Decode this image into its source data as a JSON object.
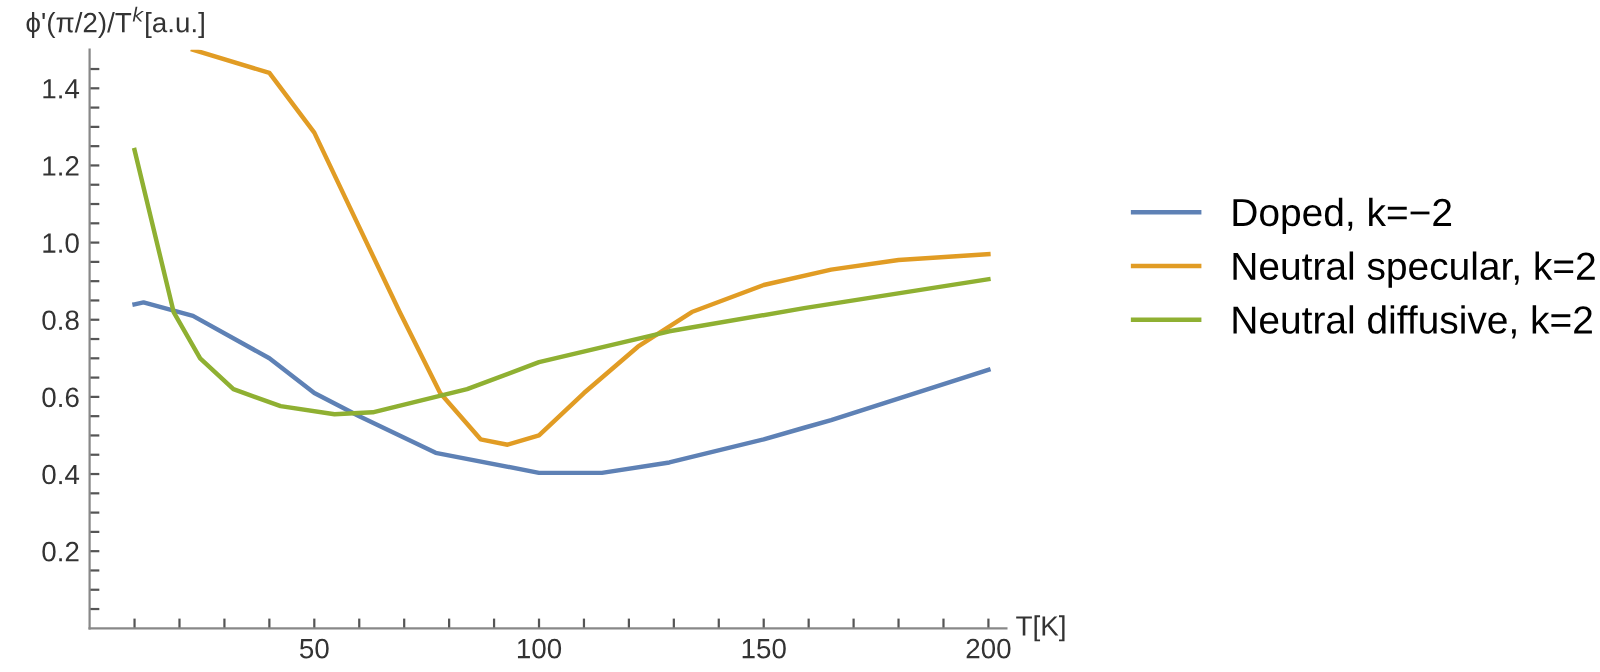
{
  "chart_data": {
    "type": "line",
    "xlabel": "T[K]",
    "ylabel": "ϕ'(π/2)/T$^{k}$[a.u.]",
    "xlim": [
      0,
      204
    ],
    "ylim": [
      0,
      1.5
    ],
    "xticks": [
      {
        "value": 10,
        "label": null
      },
      {
        "value": 20,
        "label": null
      },
      {
        "value": 30,
        "label": null
      },
      {
        "value": 40,
        "label": null
      },
      50,
      {
        "value": 60,
        "label": null
      },
      {
        "value": 70,
        "label": null
      },
      {
        "value": 80,
        "label": null
      },
      {
        "value": 90,
        "label": null
      },
      100,
      {
        "value": 110,
        "label": null
      },
      {
        "value": 120,
        "label": null
      },
      {
        "value": 130,
        "label": null
      },
      {
        "value": 140,
        "label": null
      },
      150,
      {
        "value": 160,
        "label": null
      },
      {
        "value": 170,
        "label": null
      },
      {
        "value": 180,
        "label": null
      },
      {
        "value": 190,
        "label": null
      },
      200
    ],
    "yticks": [
      {
        "value": 0.05,
        "label": null
      },
      {
        "value": 0.1,
        "label": null
      },
      {
        "value": 0.15,
        "label": null
      },
      0.2,
      {
        "value": 0.25,
        "label": null
      },
      {
        "value": 0.3,
        "label": null
      },
      {
        "value": 0.35,
        "label": null
      },
      0.4,
      {
        "value": 0.45,
        "label": null
      },
      {
        "value": 0.5,
        "label": null
      },
      {
        "value": 0.55,
        "label": null
      },
      0.6,
      {
        "value": 0.65,
        "label": null
      },
      {
        "value": 0.7,
        "label": null
      },
      {
        "value": 0.75,
        "label": null
      },
      0.8,
      {
        "value": 0.85,
        "label": null
      },
      {
        "value": 0.9,
        "label": null
      },
      {
        "value": 0.95,
        "label": null
      },
      {
        "value": 1.0,
        "label": "1.0"
      },
      {
        "value": 1.05,
        "label": null
      },
      {
        "value": 1.1,
        "label": null
      },
      {
        "value": 1.15,
        "label": null
      },
      1.2,
      {
        "value": 1.25,
        "label": null
      },
      {
        "value": 1.3,
        "label": null
      },
      {
        "value": 1.35,
        "label": null
      },
      1.4,
      {
        "value": 1.45,
        "label": null
      }
    ],
    "grid": false,
    "legend": "right",
    "marker": "none",
    "line_style": "solid",
    "series": [
      {
        "name": "Doped, k=−2",
        "color": "#5e81b5",
        "x": [
          10,
          12,
          23,
          40,
          50,
          60,
          77,
          100,
          114,
          129,
          150,
          159,
          165,
          200
        ],
        "values": [
          0.84,
          0.845,
          0.81,
          0.7,
          0.61,
          0.55,
          0.455,
          0.403,
          0.403,
          0.43,
          0.49,
          0.52,
          0.54,
          0.67
        ]
      },
      {
        "name": "Neutral specular, k=2",
        "color": "#e19c24",
        "x": [
          23,
          40,
          50,
          60,
          69,
          78,
          87,
          93,
          100,
          110,
          122,
          134,
          150,
          165,
          180,
          200
        ],
        "values": [
          1.5,
          1.44,
          1.285,
          1.04,
          0.82,
          0.61,
          0.49,
          0.476,
          0.5,
          0.61,
          0.73,
          0.82,
          0.89,
          0.93,
          0.955,
          0.97
        ]
      },
      {
        "name": "Neutral diffusive, k=2",
        "color": "#8fb032",
        "x": [
          10,
          18.7,
          24.6,
          32,
          42.5,
          54.5,
          63,
          84,
          100,
          129,
          159,
          200
        ],
        "values": [
          1.24,
          0.82,
          0.7,
          0.62,
          0.576,
          0.555,
          0.56,
          0.62,
          0.69,
          0.77,
          0.83,
          0.905
        ]
      }
    ]
  }
}
